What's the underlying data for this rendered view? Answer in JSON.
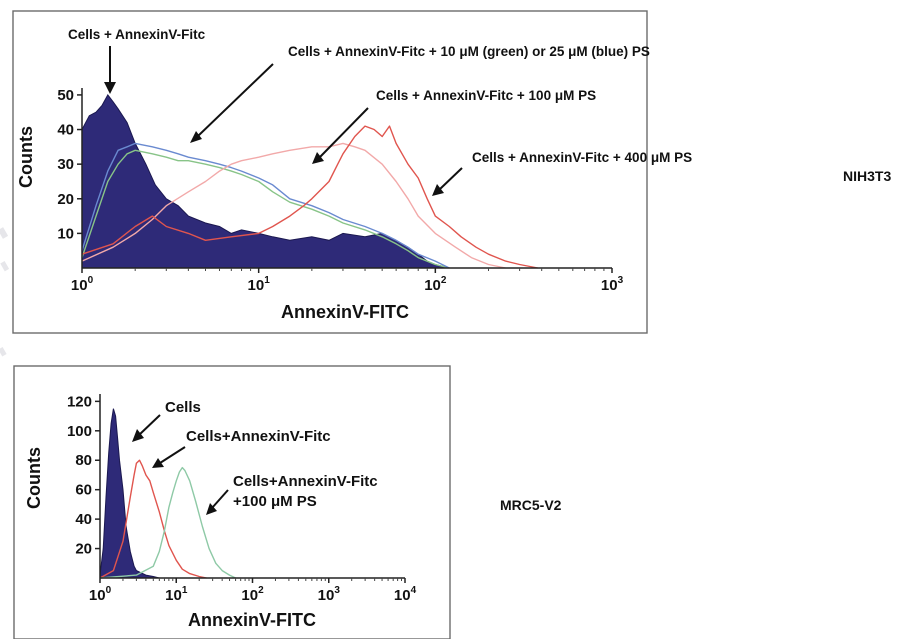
{
  "panels": [
    {
      "cell_line": "NIH3T3",
      "chart_data": {
        "type": "area",
        "x_scale": "log",
        "xlabel": "AnnexinV-FITC",
        "ylabel": "Counts",
        "xlim": [
          1,
          1000
        ],
        "ylim": [
          0,
          52
        ],
        "x_ticks": [
          {
            "value": 1,
            "label_base": "10",
            "label_exp": "0"
          },
          {
            "value": 10,
            "label_base": "10",
            "label_exp": "1"
          },
          {
            "value": 100,
            "label_base": "10",
            "label_exp": "2"
          },
          {
            "value": 1000,
            "label_base": "10",
            "label_exp": "3"
          }
        ],
        "y_ticks": [
          {
            "value": 10,
            "label": "10"
          },
          {
            "value": 20,
            "label": "20"
          },
          {
            "value": 30,
            "label": "30"
          },
          {
            "value": 40,
            "label": "40"
          },
          {
            "value": 50,
            "label": "50"
          }
        ],
        "series": [
          {
            "color": "#2e2a78",
            "filled": true,
            "points": [
              [
                1,
                40
              ],
              [
                1.1,
                44
              ],
              [
                1.2,
                45
              ],
              [
                1.3,
                47
              ],
              [
                1.4,
                50
              ],
              [
                1.5,
                48
              ],
              [
                1.6,
                46
              ],
              [
                1.8,
                42
              ],
              [
                2,
                36
              ],
              [
                2.3,
                30
              ],
              [
                2.6,
                24
              ],
              [
                3,
                20
              ],
              [
                3.5,
                18
              ],
              [
                4,
                15
              ],
              [
                5,
                13
              ],
              [
                6,
                12
              ],
              [
                7,
                10
              ],
              [
                8,
                11
              ],
              [
                10,
                10
              ],
              [
                12,
                9
              ],
              [
                15,
                8
              ],
              [
                20,
                9
              ],
              [
                25,
                8
              ],
              [
                30,
                10
              ],
              [
                40,
                9
              ],
              [
                50,
                10
              ],
              [
                60,
                8
              ],
              [
                70,
                6
              ],
              [
                80,
                4
              ],
              [
                90,
                2
              ],
              [
                100,
                1
              ],
              [
                120,
                0
              ]
            ]
          },
          {
            "color": "#88c488",
            "filled": false,
            "points": [
              [
                1,
                3
              ],
              [
                1.2,
                15
              ],
              [
                1.4,
                25
              ],
              [
                1.6,
                30
              ],
              [
                1.8,
                33
              ],
              [
                2,
                34
              ],
              [
                2.5,
                33
              ],
              [
                3,
                32
              ],
              [
                3.5,
                31
              ],
              [
                4,
                31
              ],
              [
                5,
                30
              ],
              [
                6,
                29
              ],
              [
                7,
                28
              ],
              [
                8,
                27
              ],
              [
                10,
                25
              ],
              [
                12,
                22
              ],
              [
                15,
                19
              ],
              [
                20,
                17
              ],
              [
                25,
                15
              ],
              [
                30,
                13
              ],
              [
                40,
                11
              ],
              [
                50,
                9
              ],
              [
                60,
                7
              ],
              [
                70,
                5
              ],
              [
                80,
                3
              ],
              [
                100,
                1
              ],
              [
                120,
                0
              ]
            ]
          },
          {
            "color": "#6a8ad0",
            "filled": false,
            "points": [
              [
                1,
                5
              ],
              [
                1.2,
                18
              ],
              [
                1.4,
                28
              ],
              [
                1.6,
                34
              ],
              [
                1.8,
                35
              ],
              [
                2,
                36
              ],
              [
                2.5,
                35
              ],
              [
                3,
                34
              ],
              [
                3.5,
                33
              ],
              [
                4,
                32
              ],
              [
                5,
                31
              ],
              [
                6,
                30
              ],
              [
                7,
                29
              ],
              [
                8,
                28
              ],
              [
                10,
                26
              ],
              [
                12,
                24
              ],
              [
                15,
                20
              ],
              [
                20,
                18
              ],
              [
                25,
                16
              ],
              [
                30,
                14
              ],
              [
                40,
                12
              ],
              [
                50,
                10
              ],
              [
                60,
                8
              ],
              [
                70,
                6
              ],
              [
                80,
                4
              ],
              [
                100,
                2
              ],
              [
                120,
                0
              ]
            ]
          },
          {
            "color": "#f2a9a9",
            "filled": false,
            "points": [
              [
                1,
                2
              ],
              [
                1.5,
                6
              ],
              [
                2,
                10
              ],
              [
                2.5,
                14
              ],
              [
                3,
                18
              ],
              [
                4,
                22
              ],
              [
                5,
                25
              ],
              [
                6,
                28
              ],
              [
                7,
                30
              ],
              [
                8,
                31
              ],
              [
                10,
                32
              ],
              [
                12,
                33
              ],
              [
                15,
                34
              ],
              [
                20,
                35
              ],
              [
                25,
                35
              ],
              [
                30,
                36
              ],
              [
                35,
                35
              ],
              [
                40,
                34
              ],
              [
                50,
                30
              ],
              [
                60,
                25
              ],
              [
                70,
                20
              ],
              [
                80,
                15
              ],
              [
                100,
                10
              ],
              [
                130,
                6
              ],
              [
                160,
                3
              ],
              [
                200,
                1
              ],
              [
                250,
                0
              ]
            ]
          },
          {
            "color": "#e0554e",
            "filled": false,
            "points": [
              [
                1,
                4
              ],
              [
                1.5,
                7
              ],
              [
                2,
                12
              ],
              [
                2.5,
                15
              ],
              [
                3,
                12
              ],
              [
                4,
                10
              ],
              [
                5,
                8
              ],
              [
                7,
                9
              ],
              [
                10,
                10
              ],
              [
                12,
                12
              ],
              [
                15,
                15
              ],
              [
                18,
                18
              ],
              [
                20,
                20
              ],
              [
                25,
                25
              ],
              [
                28,
                30
              ],
              [
                30,
                33
              ],
              [
                35,
                38
              ],
              [
                40,
                41
              ],
              [
                45,
                40
              ],
              [
                50,
                38
              ],
              [
                55,
                41
              ],
              [
                60,
                36
              ],
              [
                70,
                30
              ],
              [
                80,
                26
              ],
              [
                90,
                20
              ],
              [
                100,
                15
              ],
              [
                120,
                12
              ],
              [
                140,
                9
              ],
              [
                170,
                6
              ],
              [
                200,
                4
              ],
              [
                250,
                2
              ],
              [
                300,
                1
              ],
              [
                380,
                0
              ]
            ]
          }
        ]
      },
      "annotations": [
        {
          "text": "Cells + AnnexinV-Fitc"
        },
        {
          "text": "Cells + AnnexinV-Fitc + 10 μM (green) or 25 μM (blue) PS"
        },
        {
          "text": "Cells + AnnexinV-Fitc + 100 μM PS"
        },
        {
          "text": "Cells + AnnexinV-Fitc + 400 μM PS"
        }
      ]
    },
    {
      "cell_line": "MRC5-V2",
      "chart_data": {
        "type": "area",
        "x_scale": "log",
        "xlabel": "AnnexinV-FITC",
        "ylabel": "Counts",
        "xlim": [
          1,
          10000
        ],
        "ylim": [
          0,
          125
        ],
        "x_ticks": [
          {
            "value": 1,
            "label_base": "10",
            "label_exp": "0"
          },
          {
            "value": 10,
            "label_base": "10",
            "label_exp": "1"
          },
          {
            "value": 100,
            "label_base": "10",
            "label_exp": "2"
          },
          {
            "value": 1000,
            "label_base": "10",
            "label_exp": "3"
          },
          {
            "value": 10000,
            "label_base": "10",
            "label_exp": "4"
          }
        ],
        "y_ticks": [
          {
            "value": 20,
            "label": "20"
          },
          {
            "value": 40,
            "label": "40"
          },
          {
            "value": 60,
            "label": "60"
          },
          {
            "value": 80,
            "label": "80"
          },
          {
            "value": 100,
            "label": "100"
          },
          {
            "value": 120,
            "label": "120"
          }
        ],
        "series": [
          {
            "color": "#2e2a78",
            "filled": true,
            "points": [
              [
                1,
                2
              ],
              [
                1.1,
                20
              ],
              [
                1.2,
                55
              ],
              [
                1.3,
                85
              ],
              [
                1.4,
                105
              ],
              [
                1.5,
                115
              ],
              [
                1.6,
                110
              ],
              [
                1.7,
                95
              ],
              [
                1.8,
                80
              ],
              [
                2,
                60
              ],
              [
                2.2,
                35
              ],
              [
                2.5,
                18
              ],
              [
                2.8,
                8
              ],
              [
                3,
                5
              ],
              [
                4,
                2
              ],
              [
                5,
                1
              ],
              [
                6,
                0
              ]
            ]
          },
          {
            "color": "#e0554e",
            "filled": false,
            "points": [
              [
                1,
                0
              ],
              [
                1.5,
                5
              ],
              [
                2,
                25
              ],
              [
                2.5,
                55
              ],
              [
                2.8,
                70
              ],
              [
                3,
                78
              ],
              [
                3.3,
                80
              ],
              [
                3.6,
                76
              ],
              [
                4,
                70
              ],
              [
                4.5,
                66
              ],
              [
                5,
                58
              ],
              [
                6,
                45
              ],
              [
                7,
                32
              ],
              [
                8,
                22
              ],
              [
                10,
                12
              ],
              [
                12,
                6
              ],
              [
                15,
                3
              ],
              [
                20,
                1
              ],
              [
                25,
                0
              ]
            ]
          },
          {
            "color": "#8ec9a6",
            "filled": false,
            "points": [
              [
                1,
                0
              ],
              [
                3,
                2
              ],
              [
                5,
                8
              ],
              [
                6,
                18
              ],
              [
                7,
                32
              ],
              [
                8,
                48
              ],
              [
                9,
                58
              ],
              [
                10,
                66
              ],
              [
                11,
                72
              ],
              [
                12,
                75
              ],
              [
                13,
                73
              ],
              [
                15,
                66
              ],
              [
                18,
                52
              ],
              [
                22,
                35
              ],
              [
                27,
                20
              ],
              [
                33,
                10
              ],
              [
                40,
                5
              ],
              [
                50,
                2
              ],
              [
                60,
                0
              ]
            ]
          }
        ]
      },
      "annotations": [
        {
          "text": "Cells"
        },
        {
          "text": "Cells+AnnexinV-Fitc"
        },
        {
          "text": "Cells+AnnexinV-Fitc"
        },
        {
          "text": "+100 μM PS"
        }
      ]
    }
  ]
}
